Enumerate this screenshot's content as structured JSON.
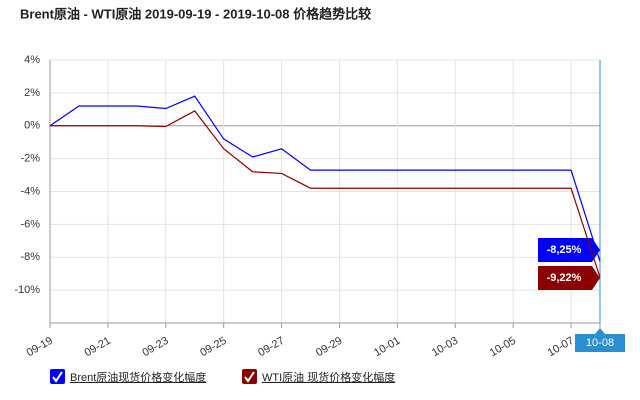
{
  "chart_data": {
    "type": "line",
    "title": "Brent原油 - WTI原油 2019-09-19 - 2019-10-08 价格趋势比较",
    "categories": [
      "09-19",
      null,
      "09-21",
      null,
      "09-23",
      null,
      "09-25",
      null,
      "09-27",
      null,
      "09-29",
      null,
      "10-01",
      null,
      "10-03",
      null,
      "10-05",
      null,
      "10-07",
      "10-08"
    ],
    "series": [
      {
        "name": "Brent原油现货价格变化幅度",
        "color": "#0000ff",
        "values": [
          0,
          1.2,
          1.2,
          1.2,
          1.05,
          1.8,
          -0.8,
          -1.9,
          -1.4,
          -2.7,
          -2.7,
          -2.7,
          -2.7,
          -2.7,
          -2.7,
          -2.7,
          -2.7,
          -2.7,
          -2.7,
          -8.25
        ],
        "value_labels": [
          null,
          null,
          null,
          null,
          null,
          null,
          null,
          null,
          null,
          null,
          null,
          null,
          null,
          null,
          null,
          null,
          null,
          null,
          null,
          "-8,25%"
        ]
      },
      {
        "name": "WTI原油 现货价格变化幅度",
        "color": "#8b0000",
        "values": [
          0,
          0,
          0,
          0,
          -0.05,
          0.9,
          -1.4,
          -2.8,
          -2.9,
          -3.8,
          -3.8,
          -3.8,
          -3.8,
          -3.8,
          -3.8,
          -3.8,
          -3.8,
          -3.8,
          -3.8,
          -9.22
        ],
        "value_labels": [
          null,
          null,
          null,
          null,
          null,
          null,
          null,
          null,
          null,
          null,
          null,
          null,
          null,
          null,
          null,
          null,
          null,
          null,
          null,
          "-9,22%"
        ]
      }
    ],
    "ylim": [
      -12,
      4
    ],
    "yticks": [
      {
        "value": 4,
        "label": "4%"
      },
      {
        "value": 2,
        "label": "2%"
      },
      {
        "value": 0,
        "label": "0%"
      },
      {
        "value": -2,
        "label": "-2%"
      },
      {
        "value": -4,
        "label": "-4%"
      },
      {
        "value": -6,
        "label": "-6%"
      },
      {
        "value": -8,
        "label": "-8%"
      },
      {
        "value": -10,
        "label": "-10%"
      }
    ],
    "grid": true
  }
}
